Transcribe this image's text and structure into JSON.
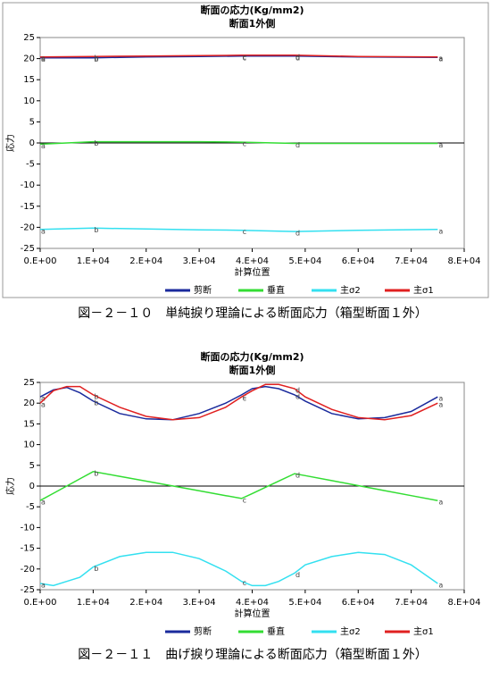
{
  "chart_data": [
    {
      "type": "line",
      "title": "断面の応力(Kg/mm2)",
      "subtitle": "断面1外側",
      "x_label": "計算位置",
      "y_label": "応力",
      "caption": "図－２－１０　単純捩り理論による断面応力（箱型断面１外）",
      "xlim": [
        0,
        80000
      ],
      "xticks": [
        {
          "value": 0,
          "label": "0.E+00"
        },
        {
          "value": 10000,
          "label": "1.E+04"
        },
        {
          "value": 20000,
          "label": "2.E+04"
        },
        {
          "value": 30000,
          "label": "3.E+04"
        },
        {
          "value": 40000,
          "label": "4.E+04"
        },
        {
          "value": 50000,
          "label": "5.E+04"
        },
        {
          "value": 60000,
          "label": "6.E+04"
        },
        {
          "value": 70000,
          "label": "7.E+04"
        },
        {
          "value": 80000,
          "label": "8.E+04"
        }
      ],
      "ylim": [
        -25,
        25
      ],
      "yticks": [
        -25,
        -20,
        -15,
        -10,
        -5,
        0,
        5,
        10,
        15,
        20,
        25
      ],
      "x": [
        0,
        10000,
        20000,
        30000,
        38000,
        48000,
        60000,
        75000
      ],
      "point_labels": [
        "a",
        "b",
        null,
        null,
        "c",
        "d",
        null,
        "a"
      ],
      "series": [
        {
          "name": "剪断",
          "color": "#1a2a9c",
          "values": [
            20.2,
            20.2,
            20.4,
            20.5,
            20.6,
            20.6,
            20.4,
            20.3
          ]
        },
        {
          "name": "垂直",
          "color": "#33dd33",
          "values": [
            -0.3,
            0.3,
            0.3,
            0.3,
            0.2,
            -0.1,
            -0.1,
            -0.1
          ]
        },
        {
          "name": "主σ2",
          "color": "#33e0f0",
          "values": [
            -20.5,
            -20.2,
            -20.4,
            -20.6,
            -20.7,
            -21,
            -20.7,
            -20.5
          ]
        },
        {
          "name": "主σ1",
          "color": "#e02020",
          "values": [
            20.4,
            20.5,
            20.6,
            20.7,
            20.8,
            20.8,
            20.5,
            20.4
          ]
        }
      ]
    },
    {
      "type": "line",
      "title": "断面の応力(Kg/mm2)",
      "subtitle": "断面1外側",
      "x_label": "計算位置",
      "y_label": "応力",
      "caption": "図－２－１１　曲げ捩り理論による断面応力（箱型断面１外）",
      "xlim": [
        0,
        80000
      ],
      "xticks": [
        {
          "value": 0,
          "label": "0.E+00"
        },
        {
          "value": 10000,
          "label": "1.E+04"
        },
        {
          "value": 20000,
          "label": "2.E+04"
        },
        {
          "value": 30000,
          "label": "3.E+04"
        },
        {
          "value": 40000,
          "label": "4.E+04"
        },
        {
          "value": 50000,
          "label": "5.E+04"
        },
        {
          "value": 60000,
          "label": "6.E+04"
        },
        {
          "value": 70000,
          "label": "7.E+04"
        },
        {
          "value": 80000,
          "label": "8.E+04"
        }
      ],
      "ylim": [
        -25,
        25
      ],
      "yticks": [
        -25,
        -20,
        -15,
        -10,
        -5,
        0,
        5,
        10,
        15,
        20,
        25
      ],
      "x": [
        0,
        2500,
        5000,
        7500,
        10000,
        15000,
        20000,
        25000,
        30000,
        35000,
        38000,
        40000,
        42500,
        45000,
        48000,
        50000,
        55000,
        60000,
        65000,
        70000,
        75000
      ],
      "point_labels": [
        "a",
        null,
        null,
        null,
        "b",
        null,
        null,
        null,
        null,
        null,
        "c",
        null,
        null,
        null,
        "d",
        null,
        null,
        null,
        null,
        null,
        "a"
      ],
      "series": [
        {
          "name": "剪断",
          "color": "#1a2a9c",
          "values": [
            21.5,
            23.2,
            23.8,
            22.5,
            20.5,
            17.5,
            16.2,
            16,
            17.5,
            20,
            22,
            23.5,
            24,
            23.5,
            22,
            20.5,
            17.5,
            16.2,
            16.5,
            18,
            21.5
          ]
        },
        {
          "name": "垂直",
          "color": "#33dd33",
          "values": [
            -3.5,
            -1.75,
            0,
            1.75,
            3.5,
            2.34,
            1.18,
            0.02,
            -1.14,
            -2.3,
            -3,
            -1.8,
            -0.3,
            1.2,
            3,
            2.52,
            1.31,
            0.11,
            -1.09,
            -2.3,
            -3.5
          ]
        },
        {
          "name": "主σ2",
          "color": "#33e0f0",
          "values": [
            -23.5,
            -24,
            -23,
            -22,
            -19.5,
            -17,
            -16,
            -16,
            -17.5,
            -20.5,
            -23,
            -24,
            -24,
            -23,
            -21,
            -19,
            -17,
            -16,
            -16.5,
            -19,
            -23.5
          ]
        },
        {
          "name": "主σ1",
          "color": "#e02020",
          "values": [
            20,
            23,
            24,
            24,
            22,
            19,
            16.8,
            16,
            16.5,
            19,
            21.5,
            23,
            24.5,
            24.5,
            23.5,
            21.5,
            18.5,
            16.5,
            16,
            17,
            20
          ]
        }
      ]
    }
  ]
}
